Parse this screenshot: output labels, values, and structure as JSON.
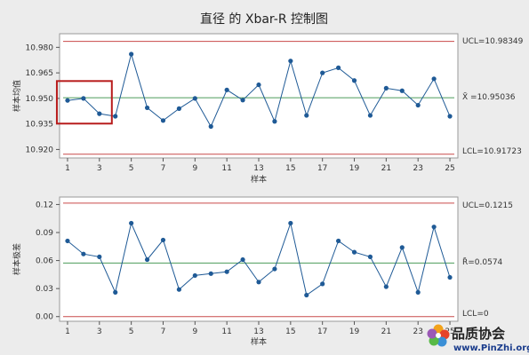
{
  "title": "直径 的 Xbar-R 控制图",
  "chart_data": [
    {
      "type": "line",
      "name": "xbar",
      "ylabel": "样本均值",
      "xlabel": "样本",
      "x": [
        1,
        2,
        3,
        4,
        5,
        6,
        7,
        8,
        9,
        10,
        11,
        12,
        13,
        14,
        15,
        16,
        17,
        18,
        19,
        20,
        21,
        22,
        23,
        24,
        25
      ],
      "values": [
        10.9488,
        10.95,
        10.941,
        10.9395,
        10.976,
        10.9445,
        10.937,
        10.944,
        10.95,
        10.9335,
        10.955,
        10.949,
        10.958,
        10.9365,
        10.972,
        10.94,
        10.965,
        10.968,
        10.9605,
        10.94,
        10.956,
        10.9545,
        10.946,
        10.9615,
        10.9395
      ],
      "ylim": [
        10.915,
        10.988
      ],
      "yticks": [
        "10.920",
        "10.935",
        "10.950",
        "10.965",
        "10.980"
      ],
      "ytick_values": [
        10.92,
        10.935,
        10.95,
        10.965,
        10.98
      ],
      "xticks": [
        "1",
        "3",
        "5",
        "7",
        "9",
        "11",
        "13",
        "15",
        "17",
        "19",
        "21",
        "23",
        "25"
      ],
      "xtick_values": [
        1,
        3,
        5,
        7,
        9,
        11,
        13,
        15,
        17,
        19,
        21,
        23,
        25
      ],
      "ucl": 10.98349,
      "center": 10.95036,
      "lcl": 10.91723,
      "ucl_label": "UCL=10.98349",
      "center_label": "X̄ =10.95036",
      "lcl_label": "LCL=10.91723",
      "highlight": {
        "x_from": 1,
        "x_to": 3
      }
    },
    {
      "type": "line",
      "name": "range",
      "ylabel": "样本极差",
      "xlabel": "样本",
      "x": [
        1,
        2,
        3,
        4,
        5,
        6,
        7,
        8,
        9,
        10,
        11,
        12,
        13,
        14,
        15,
        16,
        17,
        18,
        19,
        20,
        21,
        22,
        23,
        24,
        25
      ],
      "values": [
        0.081,
        0.067,
        0.064,
        0.026,
        0.1,
        0.061,
        0.082,
        0.029,
        0.044,
        0.046,
        0.048,
        0.061,
        0.037,
        0.051,
        0.1,
        0.023,
        0.035,
        0.081,
        0.069,
        0.064,
        0.032,
        0.074,
        0.026,
        0.096,
        0.042
      ],
      "ylim": [
        -0.005,
        0.128
      ],
      "yticks": [
        "0.00",
        "0.03",
        "0.06",
        "0.09",
        "0.12"
      ],
      "ytick_values": [
        0.0,
        0.03,
        0.06,
        0.09,
        0.12
      ],
      "xticks": [
        "1",
        "3",
        "5",
        "7",
        "9",
        "11",
        "13",
        "15",
        "17",
        "19",
        "21",
        "23",
        "25"
      ],
      "xtick_values": [
        1,
        3,
        5,
        7,
        9,
        11,
        13,
        15,
        17,
        19,
        21,
        23,
        25
      ],
      "ucl": 0.1215,
      "center": 0.0574,
      "lcl": 0,
      "ucl_label": "UCL=0.1215",
      "center_label": "R̄=0.0574",
      "lcl_label": "LCL=0"
    }
  ],
  "colors": {
    "series": "#1f5a96",
    "center_line": "#4c9b5a",
    "limit_line": "#c94a4a",
    "highlight_box": "#b81c1c",
    "plot_bg": "#ffffff",
    "axis": "#555555"
  },
  "watermark": {
    "brand": "品质协会",
    "url": "www.PinZhi.org"
  }
}
